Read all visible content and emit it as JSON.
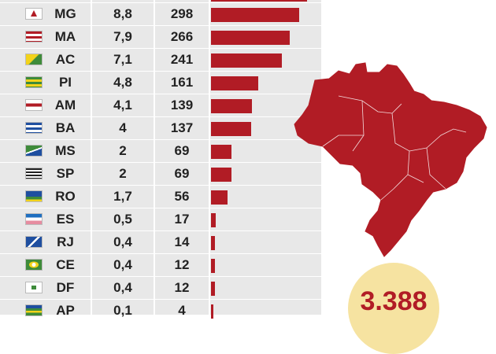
{
  "chart_data": {
    "type": "bar",
    "orientation": "horizontal",
    "columns": [
      "uf",
      "rate",
      "cases"
    ],
    "rows": [
      {
        "uf": "MG",
        "rate": "8,8",
        "cases": 298,
        "flag": "mg-flag-icon"
      },
      {
        "uf": "MA",
        "rate": "7,9",
        "cases": 266,
        "flag": "ma-flag-icon"
      },
      {
        "uf": "AC",
        "rate": "7,1",
        "cases": 241,
        "flag": "ac-flag-icon"
      },
      {
        "uf": "PI",
        "rate": "4,8",
        "cases": 161,
        "flag": "pi-flag-icon"
      },
      {
        "uf": "AM",
        "rate": "4,1",
        "cases": 139,
        "flag": "am-flag-icon"
      },
      {
        "uf": "BA",
        "rate": "4",
        "cases": 137,
        "flag": "ba-flag-icon"
      },
      {
        "uf": "MS",
        "rate": "2",
        "cases": 69,
        "flag": "ms-flag-icon"
      },
      {
        "uf": "SP",
        "rate": "2",
        "cases": 69,
        "flag": "sp-flag-icon"
      },
      {
        "uf": "RO",
        "rate": "1,7",
        "cases": 56,
        "flag": "ro-flag-icon"
      },
      {
        "uf": "ES",
        "rate": "0,5",
        "cases": 17,
        "flag": "es-flag-icon"
      },
      {
        "uf": "RJ",
        "rate": "0,4",
        "cases": 14,
        "flag": "rj-flag-icon"
      },
      {
        "uf": "CE",
        "rate": "0,4",
        "cases": 12,
        "flag": "ce-flag-icon"
      },
      {
        "uf": "DF",
        "rate": "0,4",
        "cases": 12,
        "flag": "df-flag-icon"
      },
      {
        "uf": "AP",
        "rate": "0,1",
        "cases": 4,
        "flag": "ap-flag-icon"
      }
    ],
    "bar_max": 320,
    "total": "3.388",
    "colors": {
      "bar": "#b11c25",
      "panel": "#e8e8e8",
      "map": "#b11c25",
      "total_circle": "#f6e3a1"
    }
  }
}
